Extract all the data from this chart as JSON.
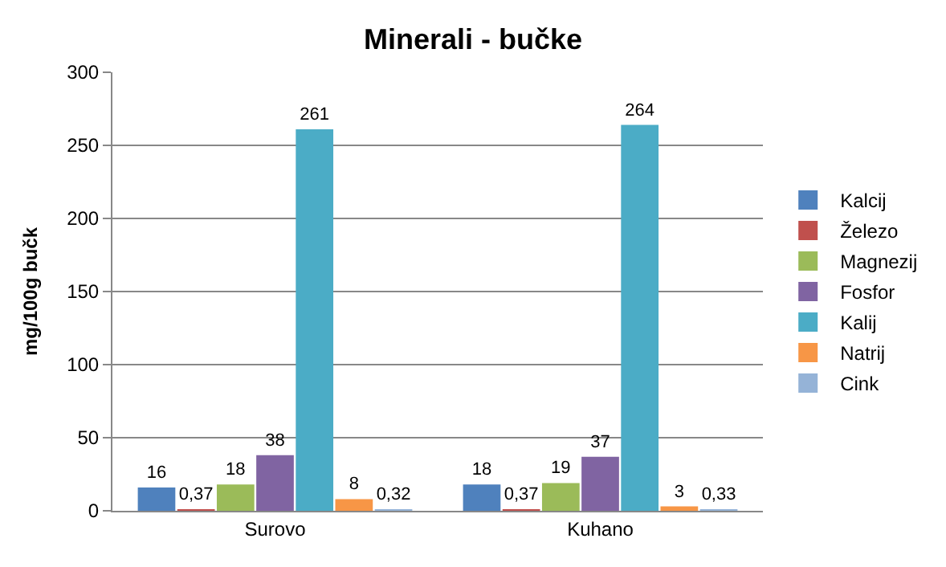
{
  "chart_data": {
    "type": "bar",
    "title": "Minerali - bučke",
    "ylabel": "mg/100g bučk",
    "categories": [
      "Surovo",
      "Kuhano"
    ],
    "series": [
      {
        "name": "Kalcij",
        "color": "#4f81bd",
        "values": [
          16,
          18
        ],
        "value_labels": [
          "16",
          "18"
        ]
      },
      {
        "name": "Železo",
        "color": "#c0504d",
        "values": [
          0.37,
          0.37
        ],
        "value_labels": [
          "0,37",
          "0,37"
        ]
      },
      {
        "name": "Magnezij",
        "color": "#9bbb59",
        "values": [
          18,
          19
        ],
        "value_labels": [
          "18",
          "19"
        ]
      },
      {
        "name": "Fosfor",
        "color": "#8064a2",
        "values": [
          38,
          37
        ],
        "value_labels": [
          "38",
          "37"
        ]
      },
      {
        "name": "Kalij",
        "color": "#4bacc6",
        "values": [
          261,
          264
        ],
        "value_labels": [
          "261",
          "264"
        ]
      },
      {
        "name": "Natrij",
        "color": "#f79646",
        "values": [
          8,
          3
        ],
        "value_labels": [
          "8",
          "3"
        ]
      },
      {
        "name": "Cink",
        "color": "#95b3d7",
        "values": [
          0.32,
          0.33
        ],
        "value_labels": [
          "0,32",
          "0,33"
        ]
      }
    ],
    "ylim": [
      0,
      300
    ],
    "yticks": [
      0,
      50,
      100,
      150,
      200,
      250,
      300
    ],
    "grid": "y",
    "legend": "right"
  }
}
